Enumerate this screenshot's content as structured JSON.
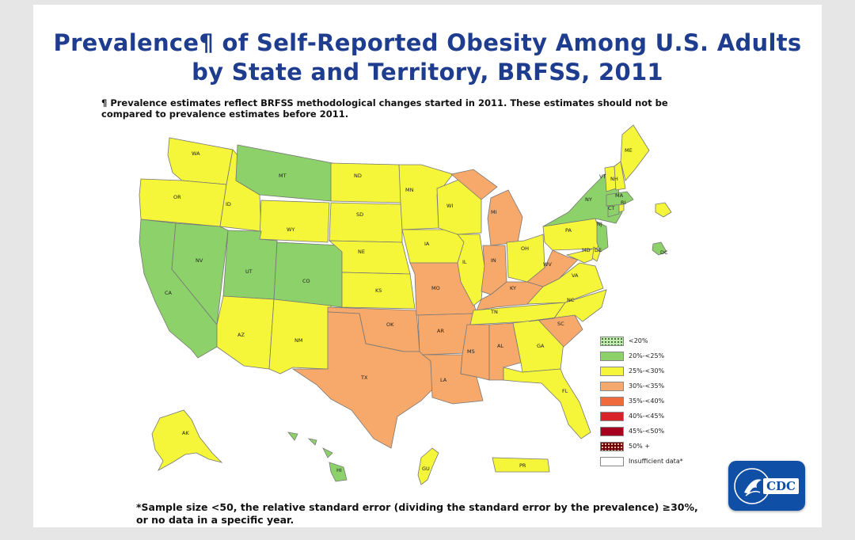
{
  "title": {
    "line1": "Prevalence¶ of Self-Reported Obesity Among U.S. Adults",
    "line2": "by State and Territory, BRFSS, 2011"
  },
  "footnote_top": "¶ Prevalence estimates reflect BRFSS methodological changes started in 2011. These estimates should not be compared to prevalence estimates before 2011.",
  "footnote_bottom": "*Sample size <50, the relative standard error (dividing the standard error by the prevalence) ≥30%, or no data in a specific year.",
  "colors": {
    "lt20": "#c7e8b0",
    "c20_25": "#8dd16a",
    "c25_30": "#f5f53a",
    "c30_35": "#f6a96a",
    "c35_40": "#ef6a3c",
    "c40_45": "#d8232a",
    "c45_50": "#a5001e",
    "c50p": "#6e0010",
    "insufficient": "#ffffff",
    "title": "#1f3d8f",
    "cdc_blue": "#0f4fa6"
  },
  "legend": [
    {
      "label": "<20%",
      "color_key": "lt20",
      "pattern": "dotted"
    },
    {
      "label": "20%-<25%",
      "color_key": "c20_25"
    },
    {
      "label": "25%-<30%",
      "color_key": "c25_30"
    },
    {
      "label": "30%-<35%",
      "color_key": "c30_35"
    },
    {
      "label": "35%-<40%",
      "color_key": "c35_40"
    },
    {
      "label": "40%-<45%",
      "color_key": "c40_45"
    },
    {
      "label": "45%-<50%",
      "color_key": "c45_50"
    },
    {
      "label": "50% +",
      "color_key": "c50p",
      "pattern": "dotted-dark"
    },
    {
      "label": "Insufficient data*",
      "color_key": "insufficient"
    }
  ],
  "states": {
    "WA": {
      "label": "WA",
      "cat": "c25_30"
    },
    "OR": {
      "label": "OR",
      "cat": "c25_30"
    },
    "CA": {
      "label": "CA",
      "cat": "c20_25"
    },
    "NV": {
      "label": "NV",
      "cat": "c20_25"
    },
    "ID": {
      "label": "ID",
      "cat": "c25_30"
    },
    "MT": {
      "label": "MT",
      "cat": "c20_25"
    },
    "WY": {
      "label": "WY",
      "cat": "c25_30"
    },
    "UT": {
      "label": "UT",
      "cat": "c20_25"
    },
    "CO": {
      "label": "CO",
      "cat": "c20_25"
    },
    "AZ": {
      "label": "AZ",
      "cat": "c25_30"
    },
    "NM": {
      "label": "NM",
      "cat": "c25_30"
    },
    "ND": {
      "label": "ND",
      "cat": "c25_30"
    },
    "SD": {
      "label": "SD",
      "cat": "c25_30"
    },
    "NE": {
      "label": "NE",
      "cat": "c25_30"
    },
    "KS": {
      "label": "KS",
      "cat": "c25_30"
    },
    "OK": {
      "label": "OK",
      "cat": "c30_35"
    },
    "TX": {
      "label": "TX",
      "cat": "c30_35"
    },
    "MN": {
      "label": "MN",
      "cat": "c25_30"
    },
    "IA": {
      "label": "IA",
      "cat": "c25_30"
    },
    "MO": {
      "label": "MO",
      "cat": "c30_35"
    },
    "AR": {
      "label": "AR",
      "cat": "c30_35"
    },
    "LA": {
      "label": "LA",
      "cat": "c30_35"
    },
    "WI": {
      "label": "WI",
      "cat": "c25_30"
    },
    "IL": {
      "label": "IL",
      "cat": "c25_30"
    },
    "MI": {
      "label": "MI",
      "cat": "c30_35"
    },
    "IN": {
      "label": "IN",
      "cat": "c30_35"
    },
    "OH": {
      "label": "OH",
      "cat": "c25_30"
    },
    "KY": {
      "label": "KY",
      "cat": "c30_35"
    },
    "TN": {
      "label": "TN",
      "cat": "c25_30"
    },
    "MS": {
      "label": "MS",
      "cat": "c30_35"
    },
    "AL": {
      "label": "AL",
      "cat": "c30_35"
    },
    "GA": {
      "label": "GA",
      "cat": "c25_30"
    },
    "FL": {
      "label": "FL",
      "cat": "c25_30"
    },
    "SC": {
      "label": "SC",
      "cat": "c30_35"
    },
    "NC": {
      "label": "NC",
      "cat": "c25_30"
    },
    "VA": {
      "label": "VA",
      "cat": "c25_30"
    },
    "WV": {
      "label": "WV",
      "cat": "c30_35"
    },
    "PA": {
      "label": "PA",
      "cat": "c25_30"
    },
    "NY": {
      "label": "NY",
      "cat": "c20_25"
    },
    "NJ": {
      "label": "NJ",
      "cat": "c20_25"
    },
    "DE": {
      "label": "DE",
      "cat": "c25_30"
    },
    "MD": {
      "label": "MD",
      "cat": "c25_30"
    },
    "DC": {
      "label": "DC",
      "cat": "c20_25"
    },
    "CT": {
      "label": "CT",
      "cat": "c20_25"
    },
    "RI": {
      "label": "RI",
      "cat": "c25_30"
    },
    "MA": {
      "label": "MA",
      "cat": "c20_25"
    },
    "VT": {
      "label": "VT",
      "cat": "c25_30"
    },
    "NH": {
      "label": "NH",
      "cat": "c25_30"
    },
    "ME": {
      "label": "ME",
      "cat": "c25_30"
    },
    "AK": {
      "label": "AK",
      "cat": "c25_30"
    },
    "HI": {
      "label": "HI",
      "cat": "c20_25"
    },
    "GU": {
      "label": "GU",
      "cat": "c25_30"
    },
    "PR": {
      "label": "PR",
      "cat": "c25_30"
    }
  },
  "logo": {
    "text": "CDC"
  }
}
